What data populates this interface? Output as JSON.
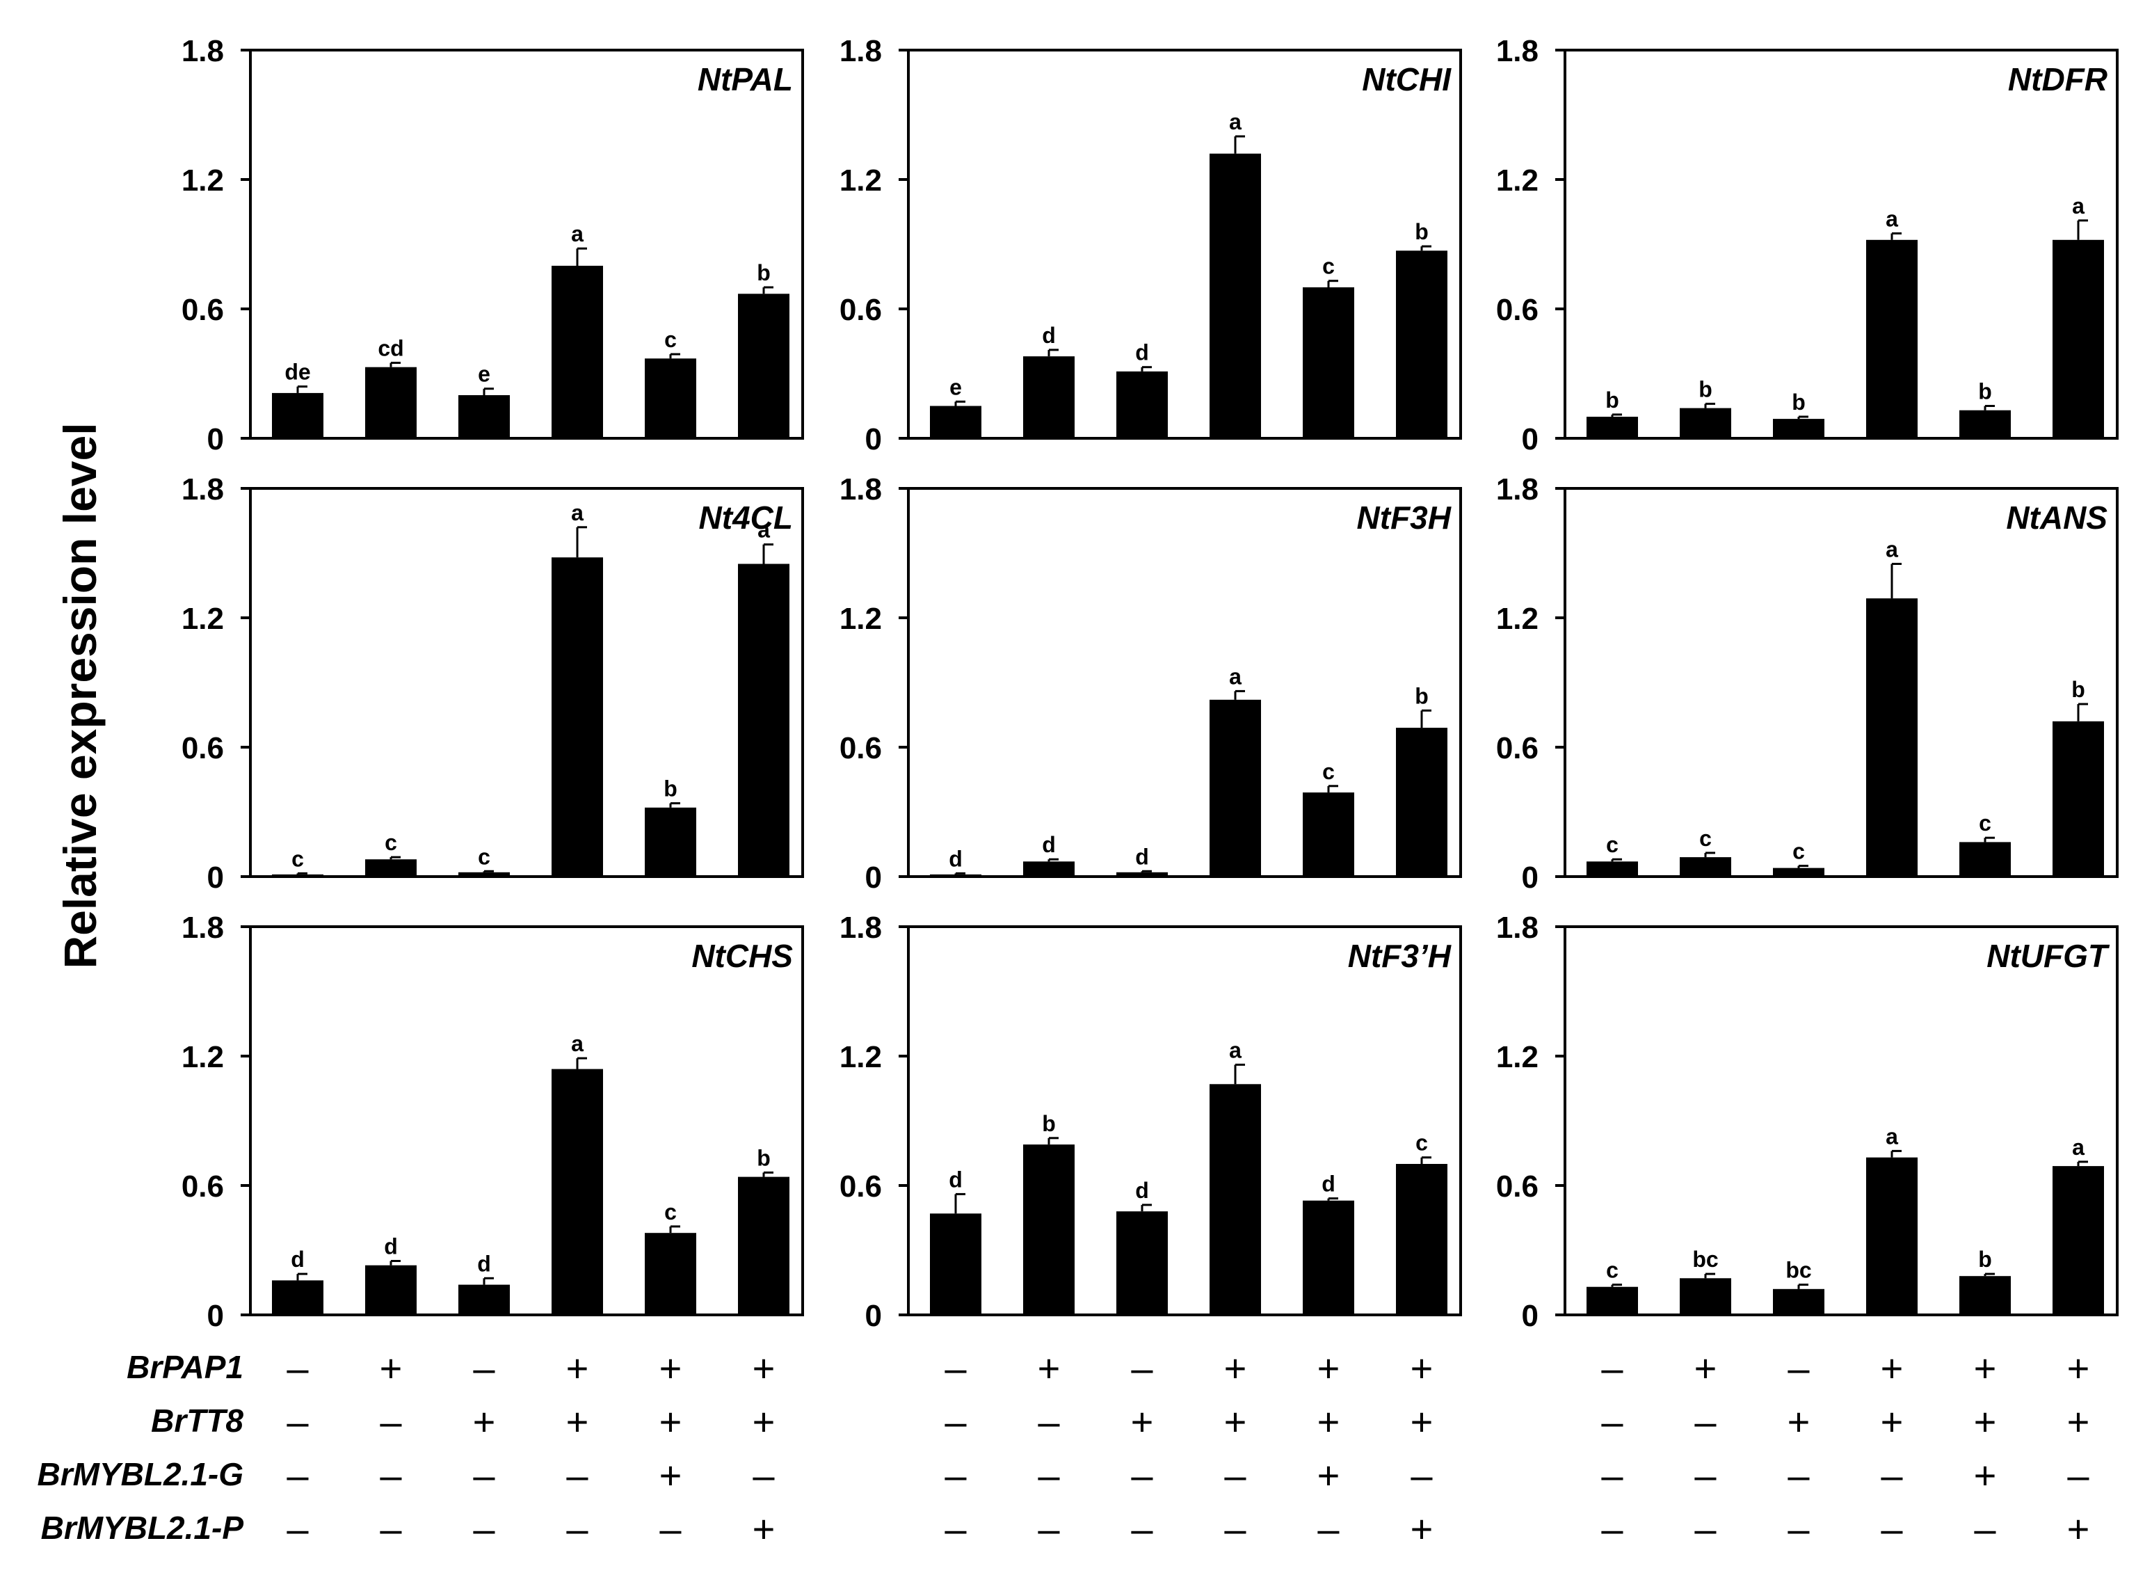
{
  "chart_data": {
    "type": "bar",
    "ylabel": "Relative expression level",
    "ylim": [
      0,
      1.8
    ],
    "yticks": [
      "0",
      "0.6",
      "1.2",
      "1.8"
    ],
    "treatments": [
      {
        "label": "BrPAP1",
        "signs": [
          "–",
          "+",
          "–",
          "+",
          "+",
          "+"
        ]
      },
      {
        "label": "BrTT8",
        "signs": [
          "–",
          "–",
          "+",
          "+",
          "+",
          "+"
        ]
      },
      {
        "label": "BrMYBL2.1-G",
        "signs": [
          "–",
          "–",
          "–",
          "–",
          "+",
          "–"
        ]
      },
      {
        "label": "BrMYBL2.1-P",
        "signs": [
          "–",
          "–",
          "–",
          "–",
          "–",
          "+"
        ]
      }
    ],
    "panels": [
      {
        "gene": "NtPAL",
        "values": [
          0.21,
          0.33,
          0.2,
          0.8,
          0.37,
          0.67
        ],
        "errors": [
          0.03,
          0.02,
          0.03,
          0.08,
          0.02,
          0.03
        ],
        "letters": [
          "de",
          "cd",
          "e",
          "a",
          "c",
          "b"
        ]
      },
      {
        "gene": "NtCHI",
        "values": [
          0.15,
          0.38,
          0.31,
          1.32,
          0.7,
          0.87
        ],
        "errors": [
          0.02,
          0.03,
          0.02,
          0.08,
          0.03,
          0.02
        ],
        "letters": [
          "e",
          "d",
          "d",
          "a",
          "c",
          "b"
        ]
      },
      {
        "gene": "NtDFR",
        "values": [
          0.1,
          0.14,
          0.09,
          0.92,
          0.13,
          0.92
        ],
        "errors": [
          0.01,
          0.02,
          0.01,
          0.03,
          0.02,
          0.09
        ],
        "letters": [
          "b",
          "b",
          "b",
          "a",
          "b",
          "a"
        ]
      },
      {
        "gene": "Nt4CL",
        "values": [
          0.01,
          0.08,
          0.02,
          1.48,
          0.32,
          1.45
        ],
        "errors": [
          0.005,
          0.01,
          0.005,
          0.14,
          0.02,
          0.09
        ],
        "letters": [
          "c",
          "c",
          "c",
          "a",
          "b",
          "a"
        ]
      },
      {
        "gene": "NtF3H",
        "values": [
          0.01,
          0.07,
          0.02,
          0.82,
          0.39,
          0.69
        ],
        "errors": [
          0.005,
          0.01,
          0.005,
          0.04,
          0.03,
          0.08
        ],
        "letters": [
          "d",
          "d",
          "d",
          "a",
          "c",
          "b"
        ]
      },
      {
        "gene": "NtANS",
        "values": [
          0.07,
          0.09,
          0.04,
          1.29,
          0.16,
          0.72
        ],
        "errors": [
          0.01,
          0.02,
          0.01,
          0.16,
          0.02,
          0.08
        ],
        "letters": [
          "c",
          "c",
          "c",
          "a",
          "c",
          "b"
        ]
      },
      {
        "gene": "NtCHS",
        "values": [
          0.16,
          0.23,
          0.14,
          1.14,
          0.38,
          0.64
        ],
        "errors": [
          0.03,
          0.02,
          0.03,
          0.05,
          0.03,
          0.02
        ],
        "letters": [
          "d",
          "d",
          "d",
          "a",
          "c",
          "b"
        ]
      },
      {
        "gene": "NtF3’H",
        "values": [
          0.47,
          0.79,
          0.48,
          1.07,
          0.53,
          0.7
        ],
        "errors": [
          0.09,
          0.03,
          0.03,
          0.09,
          0.01,
          0.03
        ],
        "letters": [
          "d",
          "b",
          "d",
          "a",
          "d",
          "c"
        ]
      },
      {
        "gene": "NtUFGT",
        "values": [
          0.13,
          0.17,
          0.12,
          0.73,
          0.18,
          0.69
        ],
        "errors": [
          0.01,
          0.02,
          0.02,
          0.03,
          0.01,
          0.02
        ],
        "letters": [
          "c",
          "bc",
          "bc",
          "a",
          "b",
          "a"
        ]
      }
    ]
  }
}
